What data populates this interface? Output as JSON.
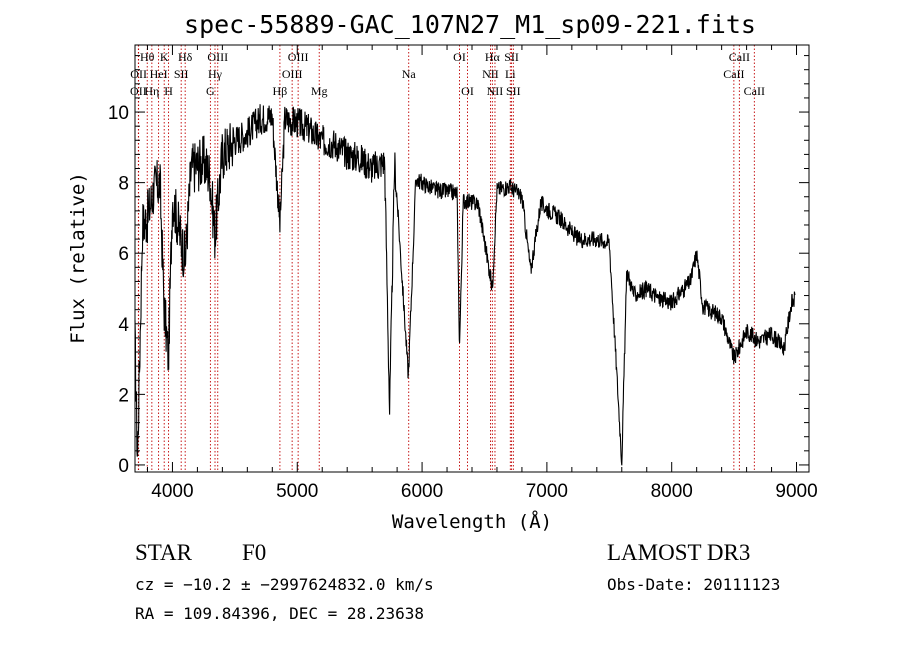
{
  "chart_data": {
    "type": "line",
    "title": "spec-55889-GAC_107N27_M1_sp09-221.fits",
    "xlabel": "Wavelength (Å)",
    "ylabel": "Flux (relative)",
    "xlim": [
      3700,
      9100
    ],
    "ylim": [
      -0.2,
      11.9
    ],
    "x_ticks": [
      4000,
      5000,
      6000,
      7000,
      8000,
      9000
    ],
    "y_ticks": [
      0,
      2,
      4,
      6,
      8,
      10
    ],
    "series": [
      {
        "name": "flux",
        "anchors": [
          [
            3700,
            3.5
          ],
          [
            3720,
            0.1
          ],
          [
            3760,
            6.8
          ],
          [
            3800,
            7.0
          ],
          [
            3850,
            7.8
          ],
          [
            3900,
            8.0
          ],
          [
            3933,
            4.5
          ],
          [
            3968,
            3.0
          ],
          [
            4000,
            7.6
          ],
          [
            4102,
            5.8
          ],
          [
            4150,
            8.4
          ],
          [
            4250,
            8.6
          ],
          [
            4300,
            8.2
          ],
          [
            4340,
            6.5
          ],
          [
            4400,
            8.8
          ],
          [
            4500,
            9.2
          ],
          [
            4600,
            9.4
          ],
          [
            4700,
            9.8
          ],
          [
            4800,
            9.9
          ],
          [
            4861,
            6.8
          ],
          [
            4900,
            9.8
          ],
          [
            5000,
            9.7
          ],
          [
            5100,
            9.5
          ],
          [
            5180,
            9.2
          ],
          [
            5300,
            9.1
          ],
          [
            5400,
            8.8
          ],
          [
            5500,
            8.7
          ],
          [
            5600,
            8.4
          ],
          [
            5700,
            8.6
          ],
          [
            5740,
            1.5
          ],
          [
            5780,
            8.6
          ],
          [
            5890,
            2.5
          ],
          [
            5950,
            8.1
          ],
          [
            6100,
            7.8
          ],
          [
            6280,
            7.7
          ],
          [
            6300,
            3.3
          ],
          [
            6330,
            7.5
          ],
          [
            6450,
            7.4
          ],
          [
            6563,
            5.0
          ],
          [
            6600,
            7.8
          ],
          [
            6700,
            7.9
          ],
          [
            6800,
            7.6
          ],
          [
            6870,
            5.5
          ],
          [
            6950,
            7.4
          ],
          [
            7100,
            7.0
          ],
          [
            7250,
            6.4
          ],
          [
            7400,
            6.4
          ],
          [
            7500,
            6.3
          ],
          [
            7600,
            0.1
          ],
          [
            7640,
            5.5
          ],
          [
            7700,
            4.8
          ],
          [
            7800,
            5.0
          ],
          [
            7900,
            4.7
          ],
          [
            8000,
            4.6
          ],
          [
            8150,
            5.2
          ],
          [
            8200,
            6.0
          ],
          [
            8250,
            4.5
          ],
          [
            8400,
            4.2
          ],
          [
            8500,
            3.0
          ],
          [
            8600,
            3.8
          ],
          [
            8700,
            3.5
          ],
          [
            8800,
            3.7
          ],
          [
            8900,
            3.3
          ],
          [
            8960,
            4.6
          ],
          [
            8990,
            4.7
          ]
        ]
      }
    ],
    "line_markers": [
      {
        "x": 3727,
        "label": "OII",
        "row": 2
      },
      {
        "x": 3729,
        "label": "OII",
        "row": 1
      },
      {
        "x": 3798,
        "label": "Hθ",
        "row": 0
      },
      {
        "x": 3835,
        "label": "Hη",
        "row": 2
      },
      {
        "x": 3889,
        "label": "HeI",
        "row": 1
      },
      {
        "x": 3934,
        "label": "K",
        "row": 0
      },
      {
        "x": 3969,
        "label": "H",
        "row": 2
      },
      {
        "x": 4070,
        "label": "SII",
        "row": 1
      },
      {
        "x": 4102,
        "label": "Hδ",
        "row": 0
      },
      {
        "x": 4304,
        "label": "G",
        "row": 2
      },
      {
        "x": 4341,
        "label": "Hγ",
        "row": 1
      },
      {
        "x": 4363,
        "label": "OIII",
        "row": 0
      },
      {
        "x": 4861,
        "label": "Hβ",
        "row": 2
      },
      {
        "x": 4959,
        "label": "OIII",
        "row": 1
      },
      {
        "x": 5007,
        "label": "OIII",
        "row": 0
      },
      {
        "x": 5176,
        "label": "Mg",
        "row": 2
      },
      {
        "x": 5893,
        "label": "Na",
        "row": 1
      },
      {
        "x": 6300,
        "label": "OI",
        "row": 0
      },
      {
        "x": 6364,
        "label": "OI",
        "row": 2
      },
      {
        "x": 6548,
        "label": "NII",
        "row": 1
      },
      {
        "x": 6563,
        "label": "Hα",
        "row": 0
      },
      {
        "x": 6584,
        "label": "NII",
        "row": 2
      },
      {
        "x": 6707,
        "label": "Li",
        "row": 1
      },
      {
        "x": 6717,
        "label": "SII",
        "row": 0
      },
      {
        "x": 6731,
        "label": "SII",
        "row": 2
      },
      {
        "x": 8498,
        "label": "CaII",
        "row": 1
      },
      {
        "x": 8542,
        "label": "CaII",
        "row": 0
      },
      {
        "x": 8662,
        "label": "CaII",
        "row": 2
      }
    ]
  },
  "info": {
    "classification": "STAR",
    "subclass": "F0",
    "survey": "LAMOST DR3",
    "redshift_text": "cz = −10.2 ± −2997624832.0 km/s",
    "obs_date_text": "Obs-Date: 20111123",
    "coords_text": "RA = 109.84396, DEC =  28.23638"
  },
  "colors": {
    "axis": "#000000",
    "spectrum": "#000000",
    "line_marker": "#c00000",
    "background": "#ffffff"
  }
}
